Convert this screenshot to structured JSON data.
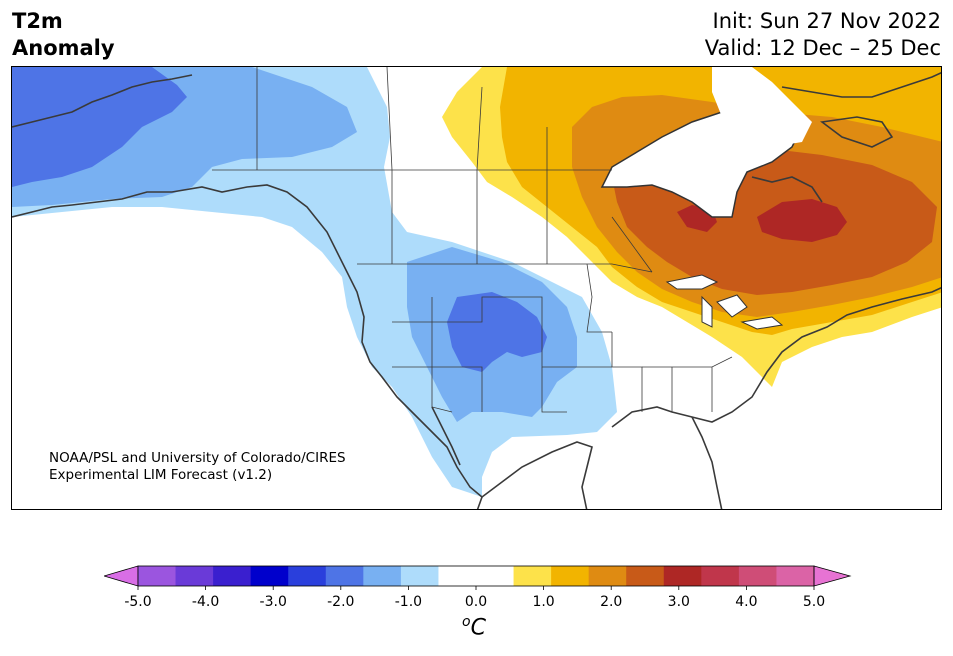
{
  "header": {
    "title_line1": "T2m",
    "title_line2": "Anomaly",
    "init": "Init: Sun 27 Nov 2022",
    "valid": "Valid: 12 Dec – 25 Dec"
  },
  "credit": {
    "line1": "NOAA/PSL and University of Colorado/CIRES",
    "line2": "Experimental LIM Forecast (v1.2)"
  },
  "colorbar": {
    "colors": [
      "#d96ee6",
      "#9b55df",
      "#6a3ad8",
      "#3a1fcf",
      "#0000cc",
      "#2a3fdc",
      "#4e74e6",
      "#78b0f2",
      "#aedcfb",
      "#ffffff",
      "#ffffff",
      "#fde24a",
      "#f2b400",
      "#df8b12",
      "#c85a18",
      "#ae2725",
      "#c0364b",
      "#cf4d77",
      "#db63a6",
      "#e773d3"
    ],
    "tick_labels": [
      "-5.0",
      "-4.0",
      "-3.0",
      "-2.0",
      "-1.0",
      "0.0",
      "1.0",
      "2.0",
      "3.0",
      "4.0",
      "5.0"
    ],
    "unit_sup": "o",
    "unit_main": "C"
  },
  "map": {
    "variable": "T2m Anomaly",
    "region": "North America",
    "anomaly_colors": {
      "cold_1": "#aedcfb",
      "cold_2": "#78b0f2",
      "cold_3": "#4e74e6",
      "warm_1": "#fde24a",
      "warm_2": "#f2b400",
      "warm_3": "#df8b12",
      "warm_4": "#c85a18",
      "warm_5": "#ae2725"
    }
  }
}
